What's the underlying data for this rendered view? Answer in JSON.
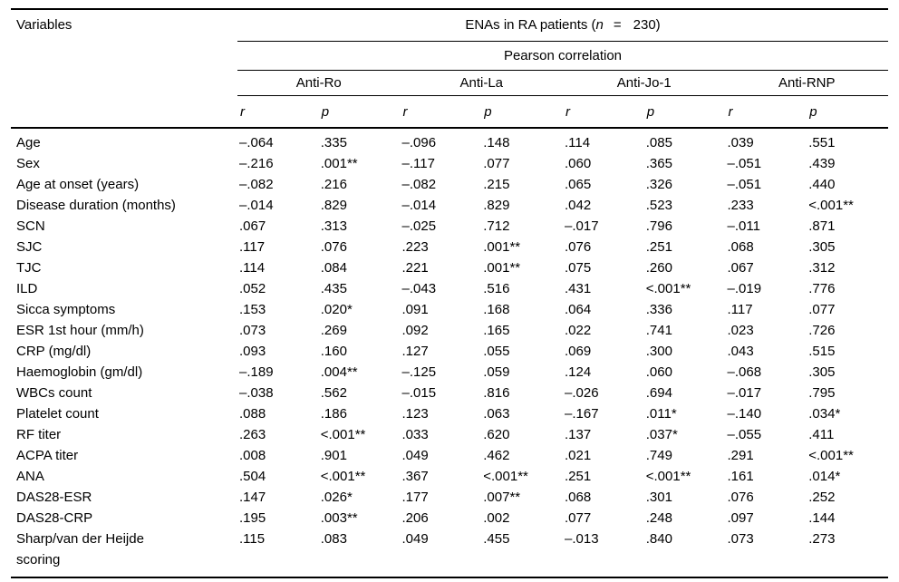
{
  "page": {
    "background": "#ffffff",
    "text_color": "#000000",
    "rule_color": "#000000"
  },
  "table": {
    "title_col_header": "Variables",
    "span_header": {
      "prefix": "ENAs in RA patients (",
      "n_symbol": "n",
      "equals": "=",
      "count_and_close": "230)"
    },
    "subtitle": "Pearson correlation",
    "groups": [
      {
        "name": "Anti-Ro",
        "subcols": [
          "r",
          "p"
        ]
      },
      {
        "name": "Anti-La",
        "subcols": [
          "r",
          "p"
        ]
      },
      {
        "name": "Anti-Jo-1",
        "subcols": [
          "r",
          "p"
        ]
      },
      {
        "name": "Anti-RNP",
        "subcols": [
          "r",
          "p"
        ]
      }
    ],
    "rows": [
      {
        "label": "Age",
        "values": [
          "–.064",
          ".335",
          "–.096",
          ".148",
          ".114",
          ".085",
          ".039",
          ".551"
        ]
      },
      {
        "label": "Sex",
        "values": [
          "–.216",
          ".001**",
          "–.117",
          ".077",
          ".060",
          ".365",
          "–.051",
          ".439"
        ]
      },
      {
        "label": "Age at onset (years)",
        "values": [
          "–.082",
          ".216",
          "–.082",
          ".215",
          ".065",
          ".326",
          "–.051",
          ".440"
        ]
      },
      {
        "label": "Disease duration (months)",
        "values": [
          "–.014",
          ".829",
          "–.014",
          ".829",
          ".042",
          ".523",
          ".233",
          "<.001**"
        ]
      },
      {
        "label": "SCN",
        "values": [
          ".067",
          ".313",
          "–.025",
          ".712",
          "–.017",
          ".796",
          "–.011",
          ".871"
        ]
      },
      {
        "label": "SJC",
        "values": [
          ".117",
          ".076",
          ".223",
          ".001**",
          ".076",
          ".251",
          ".068",
          ".305"
        ]
      },
      {
        "label": "TJC",
        "values": [
          ".114",
          ".084",
          ".221",
          ".001**",
          ".075",
          ".260",
          ".067",
          ".312"
        ]
      },
      {
        "label": "ILD",
        "values": [
          ".052",
          ".435",
          "–.043",
          ".516",
          ".431",
          "<.001**",
          "–.019",
          ".776"
        ]
      },
      {
        "label": "Sicca symptoms",
        "values": [
          ".153",
          ".020*",
          ".091",
          ".168",
          ".064",
          ".336",
          ".117",
          ".077"
        ]
      },
      {
        "label": "ESR 1st hour (mm/h)",
        "values": [
          ".073",
          ".269",
          ".092",
          ".165",
          ".022",
          ".741",
          ".023",
          ".726"
        ]
      },
      {
        "label": "CRP (mg/dl)",
        "values": [
          ".093",
          ".160",
          ".127",
          ".055",
          ".069",
          ".300",
          ".043",
          ".515"
        ]
      },
      {
        "label": "Haemoglobin (gm/dl)",
        "values": [
          "–.189",
          ".004**",
          "–.125",
          ".059",
          ".124",
          ".060",
          "–.068",
          ".305"
        ]
      },
      {
        "label": "WBCs count",
        "values": [
          "–.038",
          ".562",
          "–.015",
          ".816",
          "–.026",
          ".694",
          "–.017",
          ".795"
        ]
      },
      {
        "label": "Platelet count",
        "values": [
          ".088",
          ".186",
          ".123",
          ".063",
          "–.167",
          ".011*",
          "–.140",
          ".034*"
        ]
      },
      {
        "label": "RF titer",
        "values": [
          ".263",
          "<.001**",
          ".033",
          ".620",
          ".137",
          ".037*",
          "–.055",
          ".411"
        ]
      },
      {
        "label": "ACPA titer",
        "values": [
          ".008",
          ".901",
          ".049",
          ".462",
          ".021",
          ".749",
          ".291",
          "<.001**"
        ]
      },
      {
        "label": "ANA",
        "values": [
          ".504",
          "<.001**",
          ".367",
          "<.001**",
          ".251",
          "<.001**",
          ".161",
          ".014*"
        ]
      },
      {
        "label": "DAS28-ESR",
        "values": [
          ".147",
          ".026*",
          ".177",
          ".007**",
          ".068",
          ".301",
          ".076",
          ".252"
        ]
      },
      {
        "label": "DAS28-CRP",
        "values": [
          ".195",
          ".003**",
          ".206",
          ".002",
          ".077",
          ".248",
          ".097",
          ".144"
        ]
      },
      {
        "label": "Sharp/van der Heijde\nscoring",
        "values": [
          ".115",
          ".083",
          ".049",
          ".455",
          "–.013",
          ".840",
          ".073",
          ".273"
        ]
      }
    ]
  }
}
